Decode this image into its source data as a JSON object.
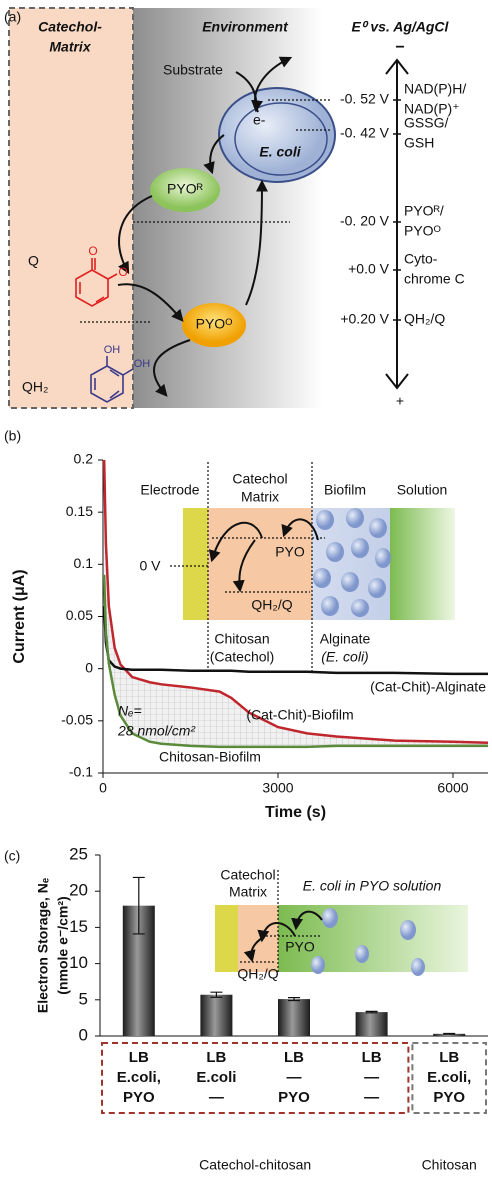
{
  "panel_a": {
    "label": "(a)",
    "matrix_title": [
      "Catechol-",
      "Matrix"
    ],
    "environment": "Environment",
    "axis_title": "E⁰ vs. Ag/AgCl",
    "axis_top": "−",
    "axis_bottom": "+",
    "substrate": "Substrate",
    "electron": "e-",
    "ecoli": "E. coli",
    "pyo_r": "PYOᴿ",
    "pyo_o": "PYOᴼ",
    "q": "Q",
    "qh2": "QH₂",
    "ketone_o": "O",
    "oh": "OH",
    "potentials": [
      {
        "value": "-0. 52 V",
        "couple": [
          "NAD(P)H/",
          "NAD(P)⁺"
        ]
      },
      {
        "value": "-0. 42 V",
        "couple": [
          "GSSG/",
          "GSH"
        ]
      },
      {
        "value": "-0. 20 V",
        "couple": [
          "PYOᴿ/",
          "PYOᴼ"
        ]
      },
      {
        "value": "+0.0 V",
        "couple": [
          "Cyto-",
          "chrome C"
        ]
      },
      {
        "value": "+0.20 V",
        "couple": [
          "QH₂/Q"
        ]
      }
    ]
  },
  "chart_data": [
    {
      "type": "line",
      "panel_label": "(b)",
      "xlabel": "Time (s)",
      "ylabel": "Current (μA)",
      "x": [
        20,
        50,
        100,
        200,
        300,
        500,
        800,
        1000,
        1500,
        2000,
        2200,
        2500,
        3000,
        3500,
        4000,
        5000,
        6000,
        6600
      ],
      "xlim": [
        0,
        6600
      ],
      "xticks": [
        0,
        3000,
        6000
      ],
      "ylim": [
        -0.1,
        0.2
      ],
      "yticks": [
        -0.1,
        -0.05,
        0,
        0.05,
        0.1,
        0.15,
        0.2
      ],
      "series": [
        {
          "name": "(Cat-Chit)-Biofilm",
          "color": "#c0272d",
          "values": [
            0.2,
            0.12,
            0.06,
            0.02,
            0.004,
            -0.008,
            -0.013,
            -0.015,
            -0.018,
            -0.022,
            -0.028,
            -0.042,
            -0.056,
            -0.062,
            -0.065,
            -0.069,
            -0.07,
            -0.071
          ]
        },
        {
          "name": "(Cat-Chit)-Alginate",
          "color": "#111111",
          "values": [
            0.06,
            0.025,
            0.008,
            0.002,
            0.0,
            -0.001,
            -0.001,
            -0.001,
            -0.002,
            -0.002,
            -0.002,
            -0.003,
            -0.003,
            -0.003,
            -0.004,
            -0.004,
            -0.005,
            -0.005
          ]
        },
        {
          "name": "Chitosan-Biofilm",
          "color": "#5a8a3a",
          "values": [
            0.09,
            0.035,
            0.005,
            -0.025,
            -0.045,
            -0.062,
            -0.07,
            -0.072,
            -0.074,
            -0.075,
            -0.075,
            -0.075,
            -0.075,
            -0.075,
            -0.074,
            -0.074,
            -0.074,
            -0.074
          ]
        }
      ],
      "annotation": [
        "Nₑ=",
        "28 nmol/cm²"
      ],
      "inset": {
        "electrode": "Electrode",
        "matrix": [
          "Catechol",
          "Matrix"
        ],
        "biofilm": "Biofilm",
        "solution": "Solution",
        "potential": "0 V",
        "pyo": "PYO",
        "qh2q": "QH₂/Q",
        "chitosan": [
          "Chitosan",
          "(Catechol)"
        ],
        "alginate": [
          "Alginate",
          "(E. coli)"
        ]
      }
    },
    {
      "type": "bar",
      "panel_label": "(c)",
      "ylabel": [
        "Electron Storage, Nₑ",
        "(nmole e⁻/cm²)"
      ],
      "categories": [
        [
          "LB",
          "E.coli,",
          "PYO"
        ],
        [
          "LB",
          "E.coli",
          "—"
        ],
        [
          "LB",
          "—",
          "PYO"
        ],
        [
          "LB",
          "—",
          "—"
        ],
        [
          "LB",
          "E.coli,",
          "PYO"
        ]
      ],
      "values": [
        18,
        5.7,
        5.1,
        3.3,
        0.3
      ],
      "errors": [
        3.9,
        0.35,
        0.2,
        0.1,
        0.05
      ],
      "color": "#3a3a3a",
      "ylim": [
        0,
        25
      ],
      "yticks": [
        0,
        5,
        10,
        15,
        20,
        25
      ],
      "groups": [
        {
          "name": "Catechol-chitosan",
          "size": 4,
          "color": "#a0342c"
        },
        {
          "name": "Chitosan",
          "size": 1,
          "color": "#777777"
        }
      ],
      "inset": {
        "matrix": [
          "Catechol",
          "Matrix"
        ],
        "solution": "E. coli in PYO solution",
        "pyo": "PYO",
        "qh2q": "QH₂/Q"
      }
    }
  ]
}
